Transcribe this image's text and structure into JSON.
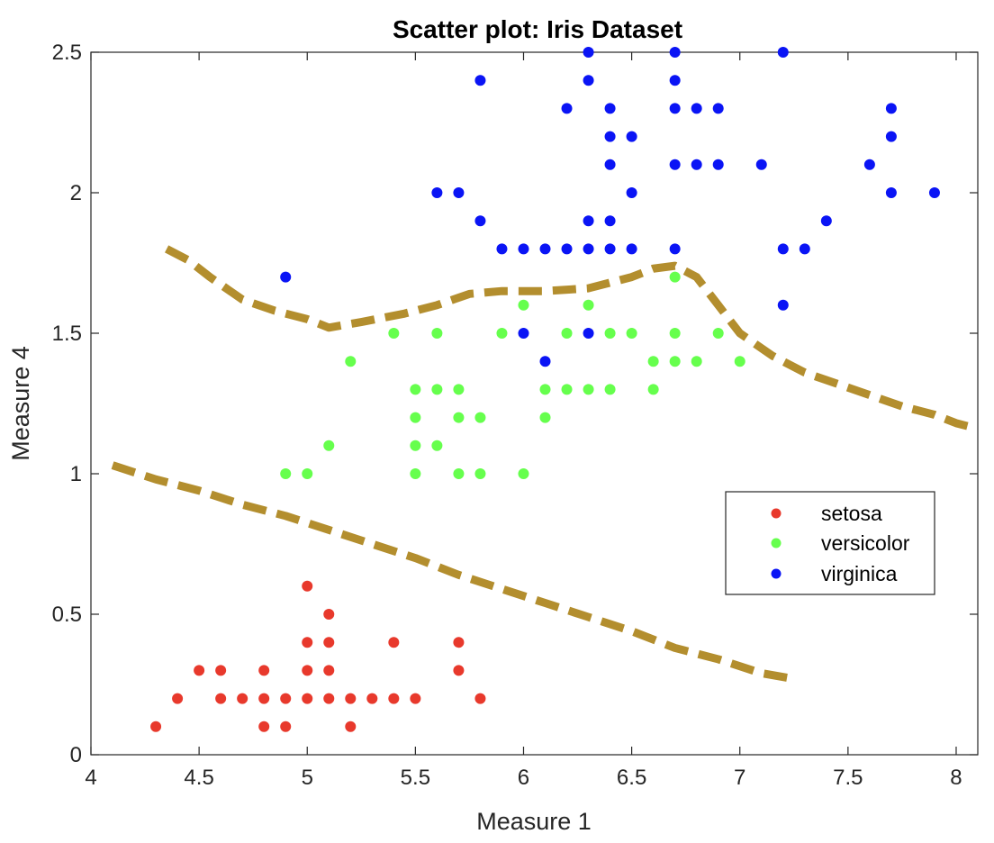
{
  "chart_data": {
    "type": "scatter",
    "title": "Scatter plot: Iris Dataset",
    "xlabel": "Measure 1",
    "ylabel": "Measure 4",
    "xlim": [
      4,
      8.1
    ],
    "ylim": [
      0,
      2.5
    ],
    "xticks": [
      4,
      4.5,
      5,
      5.5,
      6,
      6.5,
      7,
      7.5,
      8
    ],
    "xtick_labels": [
      "4",
      "4.5",
      "5",
      "5.5",
      "6",
      "6.5",
      "7",
      "7.5",
      "8"
    ],
    "yticks": [
      0,
      0.5,
      1,
      1.5,
      2,
      2.5
    ],
    "ytick_labels": [
      "0",
      "0.5",
      "1",
      "1.5",
      "2",
      "2.5"
    ],
    "grid": false,
    "legend_position": "center-right",
    "series": [
      {
        "name": "setosa",
        "color": "#e8392c",
        "points": [
          [
            4.3,
            0.1
          ],
          [
            4.4,
            0.2
          ],
          [
            4.5,
            0.3
          ],
          [
            4.6,
            0.2
          ],
          [
            4.6,
            0.3
          ],
          [
            4.7,
            0.2
          ],
          [
            4.8,
            0.1
          ],
          [
            4.8,
            0.2
          ],
          [
            4.8,
            0.3
          ],
          [
            4.9,
            0.1
          ],
          [
            4.9,
            0.2
          ],
          [
            5.0,
            0.2
          ],
          [
            5.0,
            0.3
          ],
          [
            5.0,
            0.4
          ],
          [
            5.0,
            0.6
          ],
          [
            5.1,
            0.2
          ],
          [
            5.1,
            0.3
          ],
          [
            5.1,
            0.4
          ],
          [
            5.1,
            0.5
          ],
          [
            5.2,
            0.1
          ],
          [
            5.2,
            0.2
          ],
          [
            5.3,
            0.2
          ],
          [
            5.4,
            0.2
          ],
          [
            5.4,
            0.4
          ],
          [
            5.5,
            0.2
          ],
          [
            5.7,
            0.3
          ],
          [
            5.7,
            0.4
          ],
          [
            5.8,
            0.2
          ]
        ]
      },
      {
        "name": "versicolor",
        "color": "#66ff4d",
        "points": [
          [
            4.9,
            1.0
          ],
          [
            5.0,
            1.0
          ],
          [
            5.1,
            1.1
          ],
          [
            5.2,
            1.4
          ],
          [
            5.4,
            1.5
          ],
          [
            5.5,
            1.0
          ],
          [
            5.5,
            1.1
          ],
          [
            5.5,
            1.2
          ],
          [
            5.5,
            1.3
          ],
          [
            5.6,
            1.1
          ],
          [
            5.6,
            1.3
          ],
          [
            5.6,
            1.5
          ],
          [
            5.7,
            1.0
          ],
          [
            5.7,
            1.2
          ],
          [
            5.7,
            1.3
          ],
          [
            5.8,
            1.0
          ],
          [
            5.8,
            1.2
          ],
          [
            5.9,
            1.5
          ],
          [
            6.0,
            1.0
          ],
          [
            6.0,
            1.6
          ],
          [
            6.1,
            1.2
          ],
          [
            6.1,
            1.3
          ],
          [
            6.2,
            1.3
          ],
          [
            6.2,
            1.5
          ],
          [
            6.3,
            1.3
          ],
          [
            6.3,
            1.6
          ],
          [
            6.4,
            1.3
          ],
          [
            6.4,
            1.5
          ],
          [
            6.5,
            1.5
          ],
          [
            6.6,
            1.3
          ],
          [
            6.6,
            1.4
          ],
          [
            6.7,
            1.4
          ],
          [
            6.7,
            1.5
          ],
          [
            6.7,
            1.7
          ],
          [
            6.8,
            1.4
          ],
          [
            6.9,
            1.5
          ],
          [
            7.0,
            1.4
          ]
        ]
      },
      {
        "name": "virginica",
        "color": "#0a14f5",
        "points": [
          [
            4.9,
            1.7
          ],
          [
            5.6,
            2.0
          ],
          [
            5.7,
            2.0
          ],
          [
            5.8,
            1.9
          ],
          [
            5.8,
            2.4
          ],
          [
            5.9,
            1.8
          ],
          [
            6.0,
            1.5
          ],
          [
            6.0,
            1.8
          ],
          [
            6.1,
            1.4
          ],
          [
            6.1,
            1.8
          ],
          [
            6.2,
            1.8
          ],
          [
            6.2,
            2.3
          ],
          [
            6.3,
            1.5
          ],
          [
            6.3,
            1.8
          ],
          [
            6.3,
            1.9
          ],
          [
            6.3,
            2.4
          ],
          [
            6.3,
            2.5
          ],
          [
            6.4,
            1.8
          ],
          [
            6.4,
            1.9
          ],
          [
            6.4,
            2.1
          ],
          [
            6.4,
            2.2
          ],
          [
            6.4,
            2.3
          ],
          [
            6.5,
            1.8
          ],
          [
            6.5,
            2.0
          ],
          [
            6.5,
            2.2
          ],
          [
            6.7,
            1.8
          ],
          [
            6.7,
            2.1
          ],
          [
            6.7,
            2.3
          ],
          [
            6.7,
            2.4
          ],
          [
            6.7,
            2.5
          ],
          [
            6.8,
            2.1
          ],
          [
            6.8,
            2.3
          ],
          [
            6.9,
            2.1
          ],
          [
            6.9,
            2.3
          ],
          [
            7.1,
            2.1
          ],
          [
            7.2,
            1.6
          ],
          [
            7.2,
            1.8
          ],
          [
            7.2,
            2.5
          ],
          [
            7.3,
            1.8
          ],
          [
            7.4,
            1.9
          ],
          [
            7.6,
            2.1
          ],
          [
            7.7,
            2.0
          ],
          [
            7.7,
            2.2
          ],
          [
            7.7,
            2.3
          ],
          [
            7.9,
            2.0
          ]
        ]
      }
    ],
    "boundaries": [
      {
        "color": "#b38e2e",
        "style": "dashed",
        "points": [
          [
            4.35,
            1.8
          ],
          [
            4.45,
            1.76
          ],
          [
            4.55,
            1.7
          ],
          [
            4.7,
            1.62
          ],
          [
            4.85,
            1.58
          ],
          [
            5.0,
            1.55
          ],
          [
            5.1,
            1.52
          ],
          [
            5.25,
            1.54
          ],
          [
            5.45,
            1.57
          ],
          [
            5.6,
            1.6
          ],
          [
            5.75,
            1.64
          ],
          [
            5.9,
            1.65
          ],
          [
            6.1,
            1.65
          ],
          [
            6.3,
            1.66
          ],
          [
            6.5,
            1.7
          ],
          [
            6.6,
            1.73
          ],
          [
            6.7,
            1.74
          ],
          [
            6.8,
            1.7
          ],
          [
            6.9,
            1.6
          ],
          [
            7.0,
            1.5
          ],
          [
            7.15,
            1.42
          ],
          [
            7.3,
            1.36
          ],
          [
            7.45,
            1.32
          ],
          [
            7.6,
            1.28
          ],
          [
            7.75,
            1.24
          ],
          [
            7.9,
            1.21
          ],
          [
            8.0,
            1.18
          ],
          [
            8.1,
            1.16
          ]
        ]
      },
      {
        "color": "#b38e2e",
        "style": "dashed",
        "points": [
          [
            4.1,
            1.03
          ],
          [
            4.3,
            0.98
          ],
          [
            4.5,
            0.94
          ],
          [
            4.7,
            0.89
          ],
          [
            4.9,
            0.85
          ],
          [
            5.1,
            0.8
          ],
          [
            5.3,
            0.75
          ],
          [
            5.5,
            0.7
          ],
          [
            5.7,
            0.64
          ],
          [
            5.9,
            0.59
          ],
          [
            6.1,
            0.54
          ],
          [
            6.3,
            0.49
          ],
          [
            6.5,
            0.44
          ],
          [
            6.7,
            0.38
          ],
          [
            6.9,
            0.34
          ],
          [
            7.1,
            0.29
          ],
          [
            7.25,
            0.27
          ]
        ]
      }
    ]
  }
}
